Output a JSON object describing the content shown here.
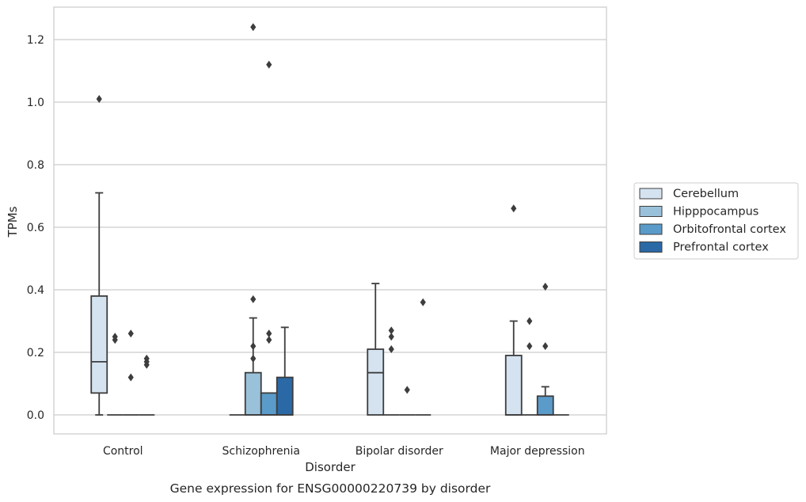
{
  "chart_data": {
    "type": "box",
    "title": "",
    "caption": "Gene expression for ENSG00000220739 by disorder",
    "xlabel": "Disorder",
    "ylabel": "TPMs",
    "ylim": [
      -0.06,
      1.3
    ],
    "yticks": [
      0.0,
      0.2,
      0.4,
      0.6,
      0.8,
      1.0,
      1.2
    ],
    "ytick_labels": [
      "0.0",
      "0.2",
      "0.4",
      "0.6",
      "0.8",
      "1.0",
      "1.2"
    ],
    "grid": "horizontal",
    "legend_position": "right",
    "categories": [
      "Control",
      "Schizophrenia",
      "Bipolar disorder",
      "Major depression"
    ],
    "series": [
      {
        "name": "Cerebellum",
        "color": "#d5e3f1",
        "boxes": [
          {
            "q1": 0.07,
            "median": 0.17,
            "q3": 0.38,
            "whisker_low": 0.0,
            "whisker_high": 0.71,
            "outliers": [
              1.01
            ]
          },
          {
            "q1": 0.0,
            "median": 0.0,
            "q3": 0.0,
            "whisker_low": 0.0,
            "whisker_high": 0.0,
            "outliers": []
          },
          {
            "q1": 0.0,
            "median": 0.135,
            "q3": 0.21,
            "whisker_low": 0.0,
            "whisker_high": 0.42,
            "outliers": []
          },
          {
            "q1": 0.0,
            "median": 0.0,
            "q3": 0.19,
            "whisker_low": 0.0,
            "whisker_high": 0.3,
            "outliers": [
              0.66
            ]
          }
        ]
      },
      {
        "name": "Hipppocampus",
        "color": "#9ac1da",
        "boxes": [
          {
            "q1": 0.0,
            "median": 0.0,
            "q3": 0.0,
            "whisker_low": 0.0,
            "whisker_high": 0.0,
            "outliers": [
              0.24,
              0.25
            ]
          },
          {
            "q1": 0.0,
            "median": 0.0,
            "q3": 0.135,
            "whisker_low": 0.0,
            "whisker_high": 0.31,
            "outliers": [
              0.18,
              0.22,
              0.37,
              1.24
            ]
          },
          {
            "q1": 0.0,
            "median": 0.0,
            "q3": 0.0,
            "whisker_low": 0.0,
            "whisker_high": 0.0,
            "outliers": [
              0.21,
              0.25,
              0.27
            ]
          },
          {
            "q1": 0.0,
            "median": 0.0,
            "q3": 0.0,
            "whisker_low": 0.0,
            "whisker_high": 0.0,
            "outliers": [
              0.22,
              0.3
            ]
          }
        ]
      },
      {
        "name": "Orbitofrontal cortex",
        "color": "#5a9bc9",
        "boxes": [
          {
            "q1": 0.0,
            "median": 0.0,
            "q3": 0.0,
            "whisker_low": 0.0,
            "whisker_high": 0.0,
            "outliers": [
              0.12,
              0.26
            ]
          },
          {
            "q1": 0.0,
            "median": 0.0,
            "q3": 0.07,
            "whisker_low": 0.0,
            "whisker_high": 0.07,
            "outliers": [
              0.24,
              0.26,
              1.12
            ]
          },
          {
            "q1": 0.0,
            "median": 0.0,
            "q3": 0.0,
            "whisker_low": 0.0,
            "whisker_high": 0.0,
            "outliers": [
              0.08
            ]
          },
          {
            "q1": 0.0,
            "median": 0.0,
            "q3": 0.06,
            "whisker_low": 0.0,
            "whisker_high": 0.09,
            "outliers": [
              0.22,
              0.41
            ]
          }
        ]
      },
      {
        "name": "Prefrontal cortex",
        "color": "#2b69a6",
        "boxes": [
          {
            "q1": 0.0,
            "median": 0.0,
            "q3": 0.0,
            "whisker_low": 0.0,
            "whisker_high": 0.0,
            "outliers": [
              0.16,
              0.17,
              0.18
            ]
          },
          {
            "q1": 0.0,
            "median": 0.0,
            "q3": 0.12,
            "whisker_low": 0.0,
            "whisker_high": 0.28,
            "outliers": []
          },
          {
            "q1": 0.0,
            "median": 0.0,
            "q3": 0.0,
            "whisker_low": 0.0,
            "whisker_high": 0.0,
            "outliers": [
              0.36
            ]
          },
          {
            "q1": 0.0,
            "median": 0.0,
            "q3": 0.0,
            "whisker_low": 0.0,
            "whisker_high": 0.0,
            "outliers": []
          }
        ]
      }
    ]
  }
}
